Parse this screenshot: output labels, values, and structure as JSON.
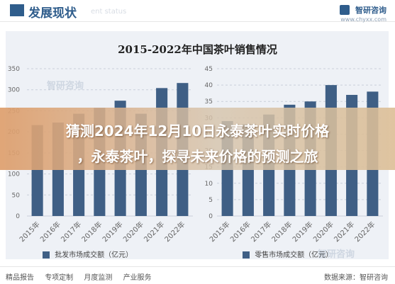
{
  "header": {
    "title": "发展现状",
    "subtitle": "ent status",
    "brand_name": "智研咨询",
    "brand_url": "www.chyxx.com"
  },
  "overlay": {
    "line1": "猜测2024年12月10日永泰茶叶实时价格",
    "line2": "，永泰茶叶，探寻未来价格的预测之旅"
  },
  "watermarks": {
    "mid": "智研咨询",
    "bottom": "智研咨询"
  },
  "footer": {
    "links": [
      "精品报告",
      "专项定制",
      "月度监测",
      "产业服务"
    ],
    "right": "数据来源：智研咨询"
  },
  "legend": {
    "left": "批发市场成交额（亿元）",
    "right": "零售市场成交额（亿元）"
  },
  "chart_data": [
    {
      "type": "bar",
      "title": "2015-2022年中国茶叶销售情况",
      "categories": [
        "2015年",
        "2016年",
        "2017年",
        "2018年",
        "2019年",
        "2020年",
        "2021年",
        "2022年"
      ],
      "series": [
        {
          "name": "批发市场成交额（亿元）",
          "values": [
            216,
            222,
            243,
            257,
            274,
            243,
            304,
            316
          ]
        }
      ],
      "ylim": [
        0,
        350
      ],
      "yticks": [
        0,
        50,
        100,
        150,
        200,
        250,
        300,
        350
      ],
      "colors": {
        "bar": "#3f5f85",
        "grid": "#c9d0da",
        "axis": "#666666"
      }
    },
    {
      "type": "bar",
      "title": "2015-2022年中国茶叶销售情况",
      "categories": [
        "2015年",
        "2016年",
        "2017年",
        "2018年",
        "2019年",
        "2020年",
        "2021年",
        "2022年"
      ],
      "series": [
        {
          "name": "零售市场成交额（亿元）",
          "values": [
            29,
            28,
            31,
            34,
            35,
            40,
            37,
            38
          ]
        }
      ],
      "ylim": [
        0,
        45
      ],
      "yticks": [
        0,
        5,
        10,
        15,
        20,
        25,
        30,
        35,
        40,
        45
      ],
      "colors": {
        "bar": "#3f5f85",
        "grid": "#c9d0da",
        "axis": "#666666"
      }
    }
  ]
}
